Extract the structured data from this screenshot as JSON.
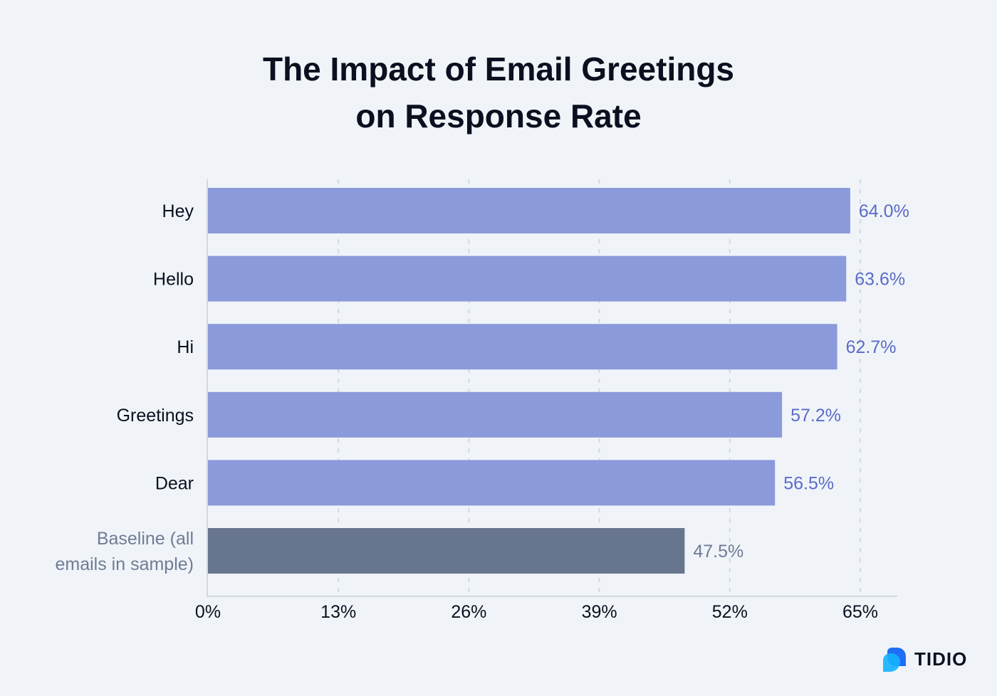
{
  "chart_data": {
    "type": "bar",
    "orientation": "horizontal",
    "title_lines": [
      "The Impact of Email Greetings",
      "on Response Rate"
    ],
    "categories": [
      "Hey",
      "Hello",
      "Hi",
      "Greetings",
      "Dear",
      "Baseline (all emails in sample)"
    ],
    "category_label_lines": [
      [
        "Hey"
      ],
      [
        "Hello"
      ],
      [
        "Hi"
      ],
      [
        "Greetings"
      ],
      [
        "Dear"
      ],
      [
        "Baseline (all",
        "emails in sample)"
      ]
    ],
    "values": [
      64.0,
      63.6,
      62.7,
      57.2,
      56.5,
      47.5
    ],
    "data_labels": [
      "64.0%",
      "63.6%",
      "62.7%",
      "57.2%",
      "56.5%",
      "47.5%"
    ],
    "xlim": [
      0,
      65
    ],
    "x_ticks": [
      0,
      13,
      26,
      39,
      52,
      65
    ],
    "x_tick_labels": [
      "0%",
      "13%",
      "26%",
      "39%",
      "52%",
      "65%"
    ],
    "grid": "vertical dashed",
    "legend": "none",
    "colors": {
      "bar": "#8b9adb",
      "baseline_bar": "#67758f",
      "label": "#5b6bc9",
      "baseline_label": "#6f7c96",
      "text": "#0b0f1f"
    }
  },
  "logo": {
    "text": "TIDIO"
  }
}
